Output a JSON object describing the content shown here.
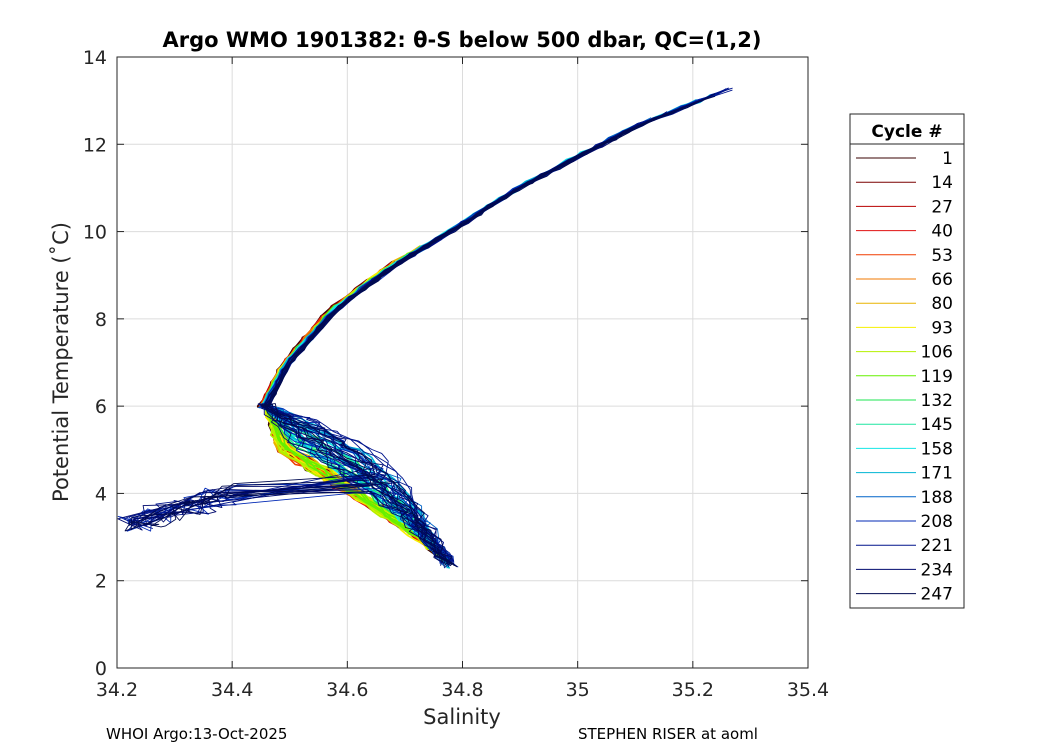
{
  "chart_data": {
    "type": "line",
    "title": "Argo WMO 1901382: θ-S below 500 dbar,  QC=(1,2)",
    "xlabel": "Salinity",
    "ylabel": "Potential Temperature (˚C)",
    "xlim": [
      34.2,
      35.4
    ],
    "ylim": [
      0,
      14
    ],
    "xticks": [
      "34.2",
      "34.4",
      "34.6",
      "34.8",
      "35",
      "35.2",
      "35.4"
    ],
    "yticks": [
      "0",
      "2",
      "4",
      "6",
      "8",
      "10",
      "12",
      "14"
    ],
    "grid": true,
    "legend_title": "Cycle #",
    "legend_position": "outside-right",
    "series": [
      {
        "name": "1",
        "color": "#3a0000"
      },
      {
        "name": "14",
        "color": "#7a0000"
      },
      {
        "name": "27",
        "color": "#b80000"
      },
      {
        "name": "40",
        "color": "#e01010"
      },
      {
        "name": "53",
        "color": "#f03c00"
      },
      {
        "name": "66",
        "color": "#f07800"
      },
      {
        "name": "80",
        "color": "#e8b400"
      },
      {
        "name": "93",
        "color": "#f6f000"
      },
      {
        "name": "106",
        "color": "#b4f000"
      },
      {
        "name": "119",
        "color": "#66f000"
      },
      {
        "name": "132",
        "color": "#1ee650"
      },
      {
        "name": "145",
        "color": "#1ee6a0"
      },
      {
        "name": "158",
        "color": "#14e6e6"
      },
      {
        "name": "171",
        "color": "#00b4d2"
      },
      {
        "name": "188",
        "color": "#0064c8"
      },
      {
        "name": "208",
        "color": "#0028b4"
      },
      {
        "name": "221",
        "color": "#00148c"
      },
      {
        "name": "234",
        "color": "#000a6e"
      },
      {
        "name": "247",
        "color": "#000a50"
      }
    ],
    "profile_shape": {
      "upper_branch": [
        [
          35.29,
          13.4
        ],
        [
          35.1,
          12.4
        ],
        [
          34.9,
          11.0
        ],
        [
          34.78,
          10.0
        ],
        [
          34.68,
          9.2
        ],
        [
          34.58,
          8.2
        ],
        [
          34.5,
          7.0
        ],
        [
          34.46,
          6.0
        ]
      ],
      "lower_branch_cold": [
        [
          34.46,
          6.0
        ],
        [
          34.48,
          5.0
        ],
        [
          34.55,
          4.4
        ],
        [
          34.65,
          3.6
        ],
        [
          34.72,
          3.0
        ],
        [
          34.77,
          2.5
        ]
      ],
      "lower_branch_warm": [
        [
          34.46,
          6.0
        ],
        [
          34.56,
          5.6
        ],
        [
          34.64,
          5.0
        ],
        [
          34.7,
          4.2
        ],
        [
          34.74,
          3.4
        ],
        [
          34.76,
          2.8
        ],
        [
          34.78,
          2.3
        ]
      ],
      "fresh_tail": [
        [
          34.4,
          4.0
        ],
        [
          34.3,
          3.6
        ],
        [
          34.22,
          3.3
        ]
      ]
    }
  },
  "footer": {
    "left": "WHOI Argo:13-Oct-2025",
    "right": "STEPHEN RISER at aoml"
  }
}
